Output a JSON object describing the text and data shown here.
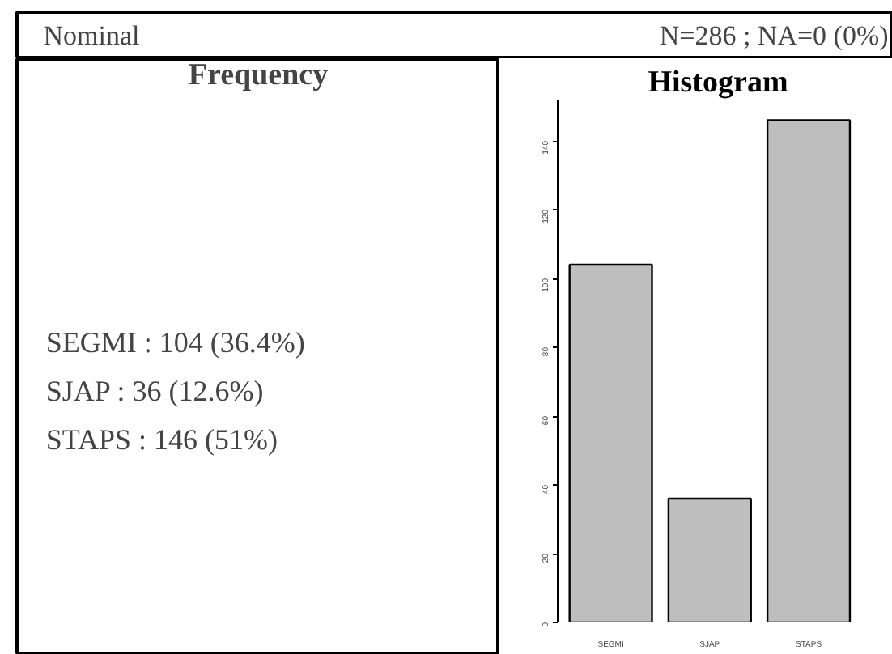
{
  "chart_data": [
    {
      "type": "other",
      "title": "Frequency",
      "annotations": [
        "Nominal",
        "N=286 ; NA=0 (0%)",
        "SEGMI : 104    (36.4%)",
        "SJAP    : 36     (12.6%)",
        "STAPS : 146    (51%)"
      ]
    },
    {
      "type": "bar",
      "title": "Histogram",
      "categories": [
        "SEGMI",
        "SJAP",
        "STAPS"
      ],
      "values": [
        104,
        36,
        146
      ],
      "color": "#bebebe",
      "ylim": [
        0,
        152
      ],
      "yticks": [
        0,
        20,
        40,
        60,
        80,
        100,
        120,
        140
      ],
      "grid": false
    }
  ]
}
